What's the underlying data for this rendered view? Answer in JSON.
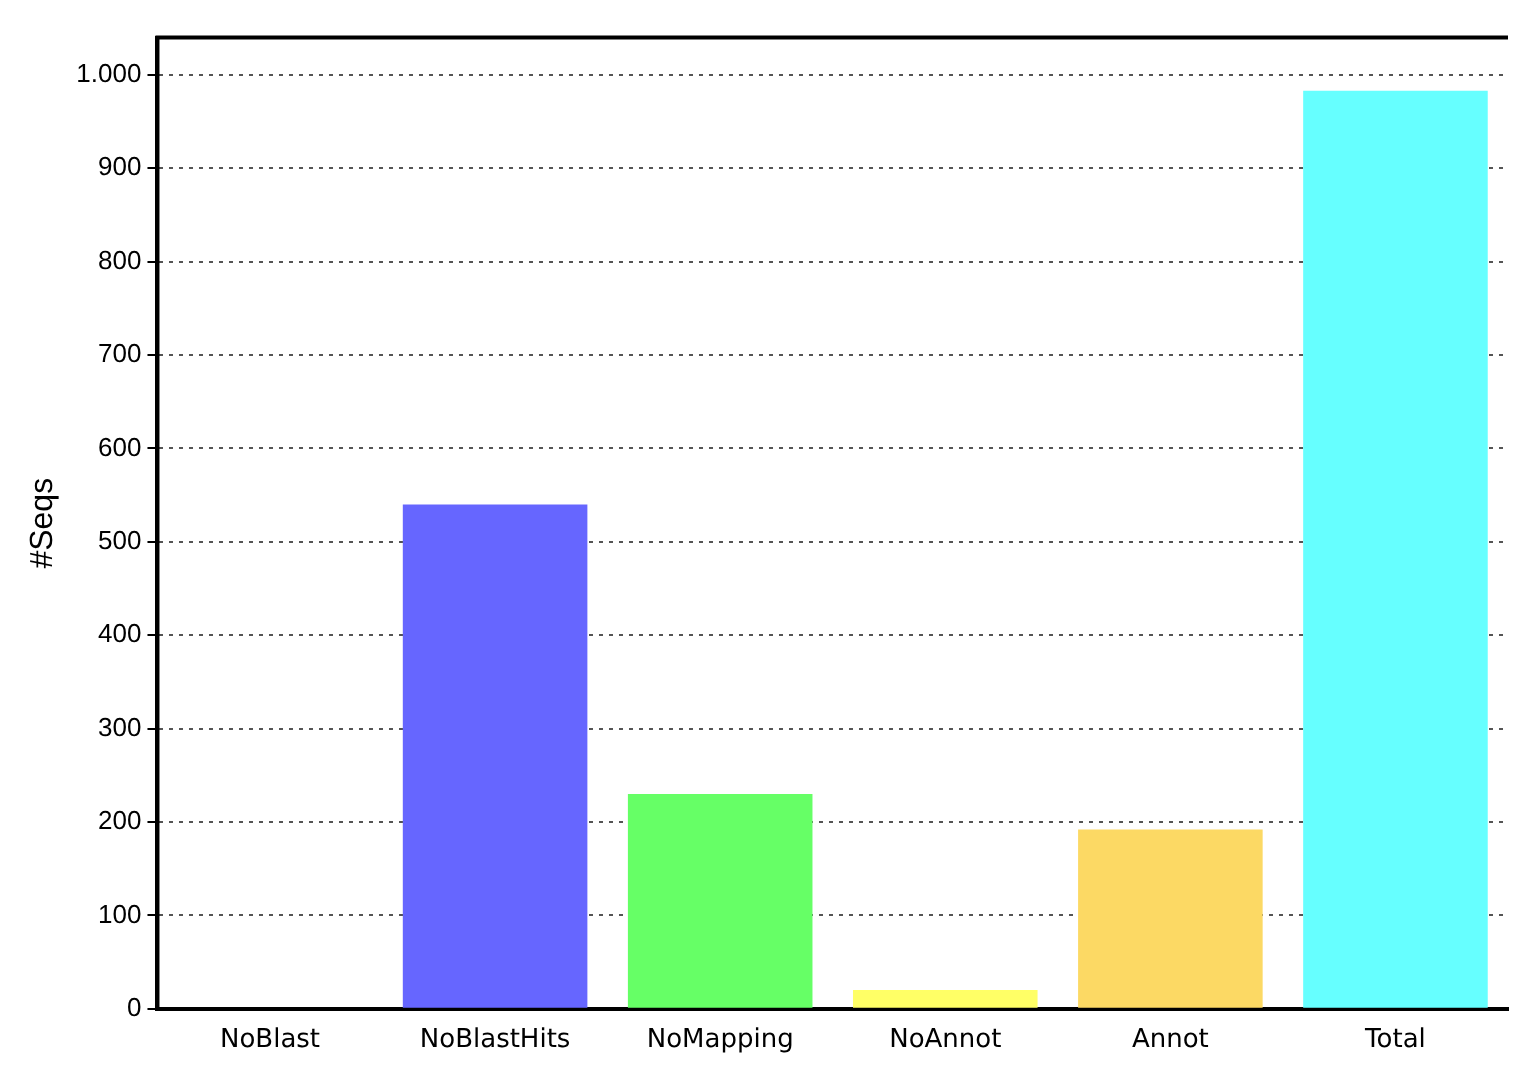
{
  "chart_data": {
    "type": "bar",
    "ylabel": "#Seqs",
    "categories": [
      "NoBlast",
      "NoBlastHits",
      "NoMapping",
      "NoAnnot",
      "Annot",
      "Total"
    ],
    "values": [
      0,
      540,
      230,
      20,
      192,
      983
    ],
    "colors": [
      "#6666ff",
      "#6666ff",
      "#66ff66",
      "#ffff66",
      "#fcd964",
      "#66ffff"
    ],
    "ylim": [
      0,
      1040
    ],
    "yticks": [
      0,
      100,
      200,
      300,
      400,
      500,
      600,
      700,
      800,
      900,
      {
        "value": 1000,
        "label": "1.000"
      }
    ],
    "grid": "y"
  }
}
